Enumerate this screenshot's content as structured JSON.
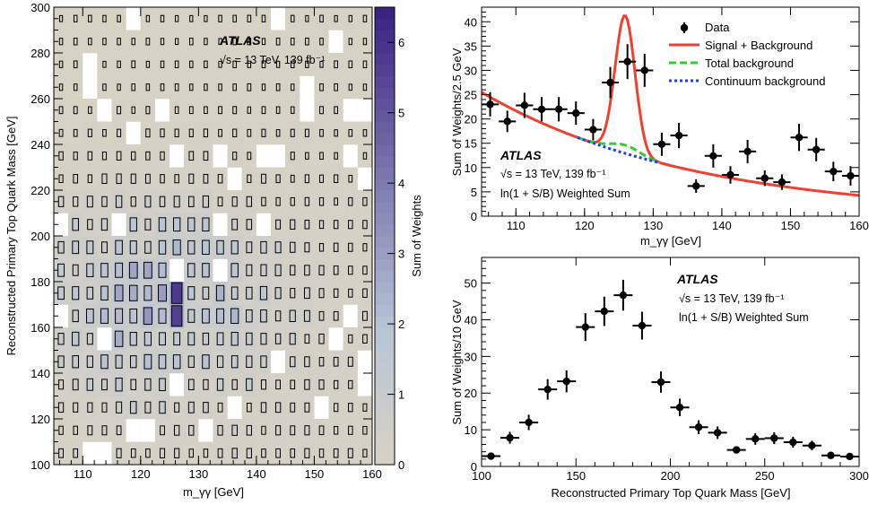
{
  "heatmap": {
    "atlas_label": "ATLAS",
    "energy_label": "√s = 13 TeV, 139 fb⁻¹",
    "xlabel": "m_γγ [GeV]",
    "ylabel": "Reconstructed Primary Top Quark Mass [GeV]",
    "zlabel": "Sum of Weights",
    "xticks": [
      "110",
      "120",
      "130",
      "140",
      "150",
      "160"
    ],
    "yticks": [
      "100",
      "120",
      "140",
      "160",
      "180",
      "200",
      "220",
      "240",
      "260",
      "280",
      "300"
    ],
    "zticks": [
      "0",
      "1",
      "2",
      "3",
      "4",
      "5",
      "6"
    ]
  },
  "mass_plot": {
    "atlas_label": "ATLAS",
    "energy_label": "√s = 13 TeV, 139 fb⁻¹",
    "weight_label": "ln(1 + S/B) Weighted Sum",
    "xlabel": "m_γγ [GeV]",
    "ylabel": "Sum of Weights/2.5 GeV",
    "xticks": [
      "110",
      "120",
      "130",
      "140",
      "150",
      "160"
    ],
    "yticks": [
      "0",
      "5",
      "10",
      "15",
      "20",
      "25",
      "30",
      "35",
      "40"
    ],
    "legend": [
      "Data",
      "Signal + Background",
      "Total background",
      "Continuum background"
    ]
  },
  "top_plot": {
    "atlas_label": "ATLAS",
    "energy_label": "√s = 13 TeV, 139 fb⁻¹",
    "weight_label": "ln(1 + S/B) Weighted Sum",
    "xlabel": "Reconstructed Primary Top Quark Mass [GeV]",
    "ylabel": "Sum of Weights/10 GeV",
    "xticks": [
      "100",
      "150",
      "200",
      "250",
      "300"
    ],
    "yticks": [
      "0",
      "10",
      "20",
      "30",
      "40",
      "50"
    ]
  },
  "colors": {
    "signal_plus_background": "#f04030",
    "total_background": "#33cc33",
    "continuum_background": "#1f3fe0",
    "data": "#000000",
    "heat_low": "#d8d2c4",
    "heat_high": "#3a2080"
  },
  "chart_data": [
    {
      "type": "heatmap",
      "x_range": [
        105,
        160
      ],
      "y_range": [
        100,
        300
      ],
      "z_range": [
        0,
        6.5
      ],
      "bin_width_x": 2.5,
      "bin_width_y": 10,
      "max_cell": {
        "x": 126.25,
        "y": 175,
        "value": 5.8
      }
    },
    {
      "type": "scatter",
      "xlim": [
        105,
        160
      ],
      "ylim": [
        0,
        43
      ],
      "series": [
        {
          "name": "Data",
          "x": [
            106.25,
            108.75,
            111.25,
            113.75,
            116.25,
            118.75,
            121.25,
            123.75,
            126.25,
            128.75,
            131.25,
            133.75,
            136.25,
            138.75,
            141.25,
            143.75,
            146.25,
            148.75,
            151.25,
            153.75,
            156.25,
            158.75
          ],
          "y": [
            23,
            19.5,
            22.8,
            22,
            22,
            21.2,
            17.8,
            27.5,
            31.8,
            30,
            14.8,
            16.6,
            6.2,
            12.4,
            8.5,
            13.3,
            7.8,
            7,
            16.2,
            13.7,
            9.2,
            8.3
          ],
          "yerr": [
            2.5,
            2.2,
            2.6,
            2.5,
            2.5,
            2.4,
            2.2,
            3.2,
            3.6,
            3.4,
            2.4,
            2.6,
            1.4,
            2.4,
            1.8,
            2.4,
            1.6,
            1.6,
            2.8,
            2.4,
            2.0,
            2.0
          ]
        },
        {
          "name": "Signal + Background",
          "peak_mass": 125.9,
          "peak_height": 41.3
        },
        {
          "name": "Total background"
        },
        {
          "name": "Continuum background"
        }
      ]
    },
    {
      "type": "scatter",
      "xlim": [
        100,
        300
      ],
      "ylim": [
        0,
        57
      ],
      "series": [
        {
          "name": "Data",
          "x": [
            105,
            115,
            125,
            135,
            145,
            155,
            165,
            175,
            185,
            195,
            205,
            215,
            225,
            235,
            245,
            255,
            265,
            275,
            285,
            295
          ],
          "y": [
            2.8,
            7.8,
            12,
            21,
            23.2,
            38,
            42.3,
            46.7,
            38.4,
            23,
            16.1,
            10.7,
            9.2,
            4.5,
            7.5,
            7.7,
            6.6,
            5.7,
            3,
            2.7
          ],
          "yerr": [
            0.9,
            1.6,
            2.1,
            2.8,
            3.0,
            3.8,
            4.0,
            4.2,
            3.8,
            2.9,
            2.4,
            1.9,
            1.7,
            0.8,
            1.6,
            1.6,
            1.5,
            1.3,
            0.8,
            0.8
          ]
        }
      ]
    }
  ]
}
